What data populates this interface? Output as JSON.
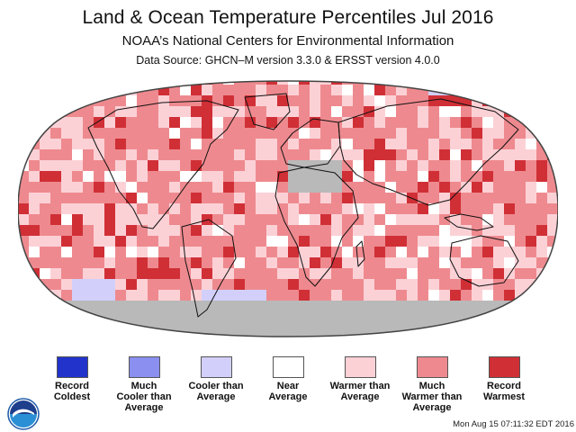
{
  "header": {
    "title": "Land & Ocean Temperature Percentiles Jul 2016",
    "subtitle": "NOAA’s National Centers for Environmental Information",
    "source": "Data Source: GHCN–M version 3.3.0 & ERSST version 4.0.0"
  },
  "map_colors": {
    "record_coldest": "#2233cc",
    "much_cooler": "#8a8ff0",
    "cooler": "#d2d0fb",
    "near": "#ffffff",
    "warmer": "#fbd1d6",
    "much_warmer": "#ee8a8f",
    "record_warmest": "#d02f36",
    "no_data": "#b9b9b9"
  },
  "legend": {
    "items": [
      {
        "line1": "Record",
        "line2": "Coldest",
        "line3": "",
        "color": "#2233cc"
      },
      {
        "line1": "Much",
        "line2": "Cooler than",
        "line3": "Average",
        "color": "#8a8ff0"
      },
      {
        "line1": "Cooler than",
        "line2": "Average",
        "line3": "",
        "color": "#d2d0fb"
      },
      {
        "line1": "Near",
        "line2": "Average",
        "line3": "",
        "color": "#ffffff"
      },
      {
        "line1": "Warmer than",
        "line2": "Average",
        "line3": "",
        "color": "#fbd1d6"
      },
      {
        "line1": "Much",
        "line2": "Warmer than",
        "line3": "Average",
        "color": "#ee8a8f"
      },
      {
        "line1": "Record",
        "line2": "Warmest",
        "line3": "",
        "color": "#d02f36"
      }
    ]
  },
  "footer": {
    "timestamp": "Mon Aug 15 07:11:32 EDT 2016"
  }
}
